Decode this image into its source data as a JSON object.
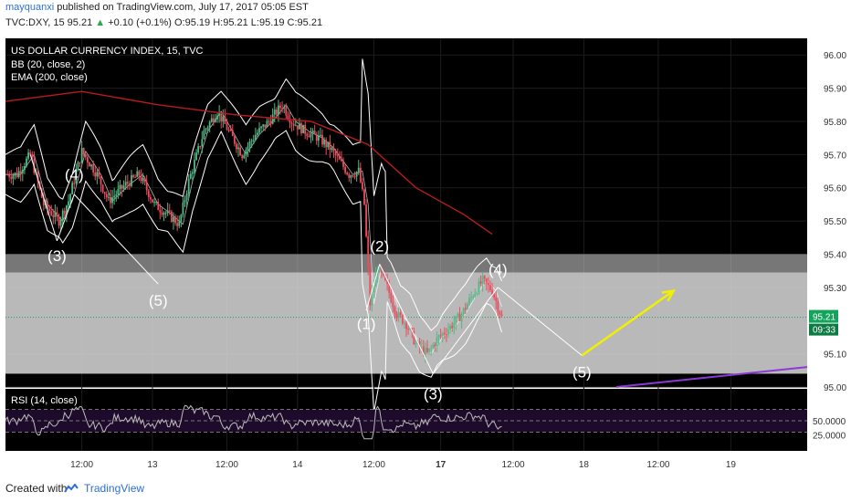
{
  "header": {
    "author": "mayquanxi",
    "published": "published on TradingView.com, July 17, 2017 05:05 EST",
    "symbol": "TVC:DXY, 15",
    "last": "95.21",
    "change": "+0.10 (+0.1%)",
    "ohlc": "O:95.19 H:95.21 L:95.19 C:95.21"
  },
  "legend": {
    "name": "US DOLLAR CURRENCY INDEX, 15, TVC",
    "bb": "BB (20, close, 2)",
    "ema": "EMA (200, close)",
    "rsi": "RSI (14, close)"
  },
  "colors": {
    "background": "#000000",
    "candle_up": "#53b987",
    "candle_down": "#eb4d5c",
    "band": "#ffffff",
    "ema": "#b71c1c",
    "zone": "#d9d9d9",
    "arrow": "#f0f000",
    "trendline": "#8c3ad6",
    "rsi_fill": "#1e0b2b",
    "price_badge": "#13a35a"
  },
  "price_badge": {
    "value": "95.21",
    "timer": "09:33"
  },
  "waves": [
    "(3)",
    "(4)",
    "(5)",
    "(1)",
    "(2)",
    "(3)",
    "(4)",
    "(5)"
  ],
  "footer": {
    "created": "Created with",
    "brand": "TradingView"
  },
  "chart_data": {
    "type": "candlestick",
    "title": "US DOLLAR CURRENCY INDEX, 15, TVC",
    "ylim": [
      95.0,
      96.05
    ],
    "price_ticks": [
      "96.00",
      "95.90",
      "95.80",
      "95.70",
      "95.60",
      "95.50",
      "95.40",
      "95.30",
      "95.10",
      "95.00"
    ],
    "rsi_ticks": [
      "50.0000",
      "25.0000"
    ],
    "rsi_range": [
      0,
      100
    ],
    "x_ticks": [
      "12:00",
      "13",
      "12:00",
      "14",
      "12:00",
      "17",
      "12:00",
      "18",
      "12:00",
      "19"
    ],
    "price_path": [
      {
        "t": 0,
        "p": 95.64
      },
      {
        "t": 6,
        "p": 95.64
      },
      {
        "t": 13,
        "p": 95.7
      },
      {
        "t": 20,
        "p": 95.55
      },
      {
        "t": 28,
        "p": 95.5
      },
      {
        "t": 33,
        "p": 95.56
      },
      {
        "t": 40,
        "p": 95.71
      },
      {
        "t": 48,
        "p": 95.64
      },
      {
        "t": 54,
        "p": 95.56
      },
      {
        "t": 63,
        "p": 95.61
      },
      {
        "t": 70,
        "p": 95.64
      },
      {
        "t": 78,
        "p": 95.55
      },
      {
        "t": 85,
        "p": 95.52
      },
      {
        "t": 91,
        "p": 95.49
      },
      {
        "t": 96,
        "p": 95.62
      },
      {
        "t": 104,
        "p": 95.77
      },
      {
        "t": 111,
        "p": 95.83
      },
      {
        "t": 118,
        "p": 95.76
      },
      {
        "t": 124,
        "p": 95.7
      },
      {
        "t": 131,
        "p": 95.76
      },
      {
        "t": 138,
        "p": 95.8
      },
      {
        "t": 145,
        "p": 95.85
      },
      {
        "t": 150,
        "p": 95.8
      },
      {
        "t": 157,
        "p": 95.77
      },
      {
        "t": 164,
        "p": 95.75
      },
      {
        "t": 170,
        "p": 95.72
      },
      {
        "t": 175,
        "p": 95.68
      },
      {
        "t": 180,
        "p": 95.64
      },
      {
        "t": 185,
        "p": 95.65
      },
      {
        "t": 188,
        "p": 95.55
      },
      {
        "t": 191,
        "p": 95.25
      },
      {
        "t": 195,
        "p": 95.36
      },
      {
        "t": 200,
        "p": 95.3
      },
      {
        "t": 205,
        "p": 95.22
      },
      {
        "t": 210,
        "p": 95.19
      },
      {
        "t": 215,
        "p": 95.13
      },
      {
        "t": 221,
        "p": 95.1
      },
      {
        "t": 227,
        "p": 95.15
      },
      {
        "t": 233,
        "p": 95.18
      },
      {
        "t": 239,
        "p": 95.22
      },
      {
        "t": 245,
        "p": 95.28
      },
      {
        "t": 250,
        "p": 95.32
      },
      {
        "t": 255,
        "p": 95.29
      },
      {
        "t": 260,
        "p": 95.21
      }
    ],
    "ema_path": [
      {
        "t": 0,
        "p": 95.86
      },
      {
        "t": 40,
        "p": 95.89
      },
      {
        "t": 80,
        "p": 95.85
      },
      {
        "t": 120,
        "p": 95.82
      },
      {
        "t": 160,
        "p": 95.8
      },
      {
        "t": 190,
        "p": 95.73
      },
      {
        "t": 215,
        "p": 95.6
      },
      {
        "t": 240,
        "p": 95.52
      },
      {
        "t": 255,
        "p": 95.46
      }
    ],
    "zone": {
      "low": 95.04,
      "mid": 95.345,
      "high": 95.4
    },
    "wave_points": [
      {
        "label": "(3)",
        "t": 27,
        "p": 95.44
      },
      {
        "label": "(4)",
        "t": 36,
        "p": 95.58
      },
      {
        "label": "(5)",
        "t": 80,
        "p": 95.31
      },
      {
        "label": "(1)",
        "t": 189,
        "p": 95.23
      },
      {
        "label": "(2)",
        "t": 196,
        "p": 95.37
      },
      {
        "label": "(3)",
        "t": 224,
        "p": 95.04
      },
      {
        "label": "(4)",
        "t": 258,
        "p": 95.3
      },
      {
        "label": "(5)",
        "t": 302,
        "p": 95.095
      }
    ],
    "projection_arrow": [
      {
        "t": 302,
        "p": 95.095
      },
      {
        "t": 350,
        "p": 95.29
      }
    ],
    "trendline": [
      {
        "t": 320,
        "p": 95.0
      },
      {
        "t": 400,
        "p": 95.06
      }
    ]
  }
}
